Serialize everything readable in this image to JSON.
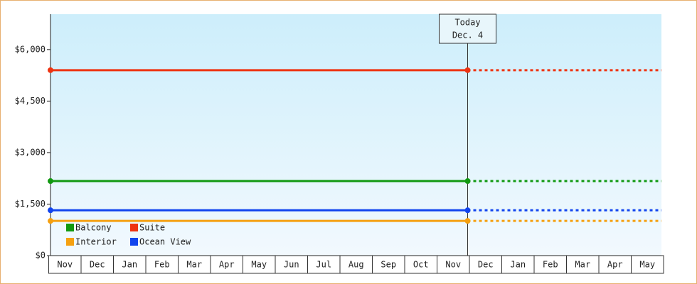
{
  "chart_data": {
    "type": "line",
    "categories": [
      "Nov",
      "Dec",
      "Jan",
      "Feb",
      "Mar",
      "Apr",
      "May",
      "Jun",
      "Jul",
      "Aug",
      "Sep",
      "Oct",
      "Nov",
      "Dec",
      "Jan",
      "Feb",
      "Mar",
      "Apr",
      "May"
    ],
    "ylim": [
      0,
      7030
    ],
    "yticks": [
      {
        "value": 0,
        "label": "$0"
      },
      {
        "value": 1500,
        "label": "$1,500"
      },
      {
        "value": 3000,
        "label": "$3,000"
      },
      {
        "value": 4500,
        "label": "$4,500"
      },
      {
        "value": 6000,
        "label": "$6,000"
      }
    ],
    "annotation": {
      "lines": [
        "Today",
        "Dec. 4"
      ],
      "category_index": 13
    },
    "series": [
      {
        "name": "Balcony",
        "color": "#119911",
        "value": 2170
      },
      {
        "name": "Suite",
        "color": "#ee3311",
        "value": 5400
      },
      {
        "name": "Interior",
        "color": "#f5a010",
        "value": 1010
      },
      {
        "name": "Ocean View",
        "color": "#1144ee",
        "value": 1320
      }
    ]
  }
}
